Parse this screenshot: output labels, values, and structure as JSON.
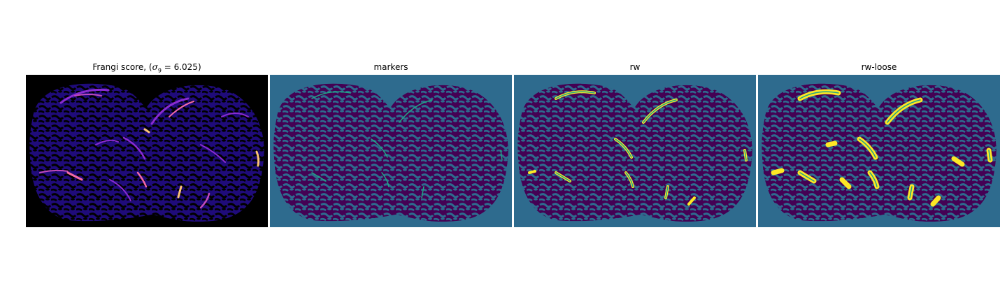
{
  "panels": [
    {
      "title_prefix": "Frangi score, (",
      "title_sigma": "σ",
      "title_sub": "9",
      "title_suffix": " = 6.025)"
    },
    {
      "title": "markers"
    },
    {
      "title": "rw"
    },
    {
      "title": "rw-loose"
    }
  ],
  "colors": {
    "frangi_bg": "#000000",
    "frangi_tissue": "#1f0b7a",
    "frangi_vessel_mid": "#8a2bd0",
    "frangi_vessel_hot": "#f36aa5",
    "frangi_vessel_peak": "#fcc472",
    "label_bg": "#2e6b8e",
    "label_tissue": "#440154",
    "label_marker": "#21a585",
    "label_vessel": "#fde725"
  }
}
